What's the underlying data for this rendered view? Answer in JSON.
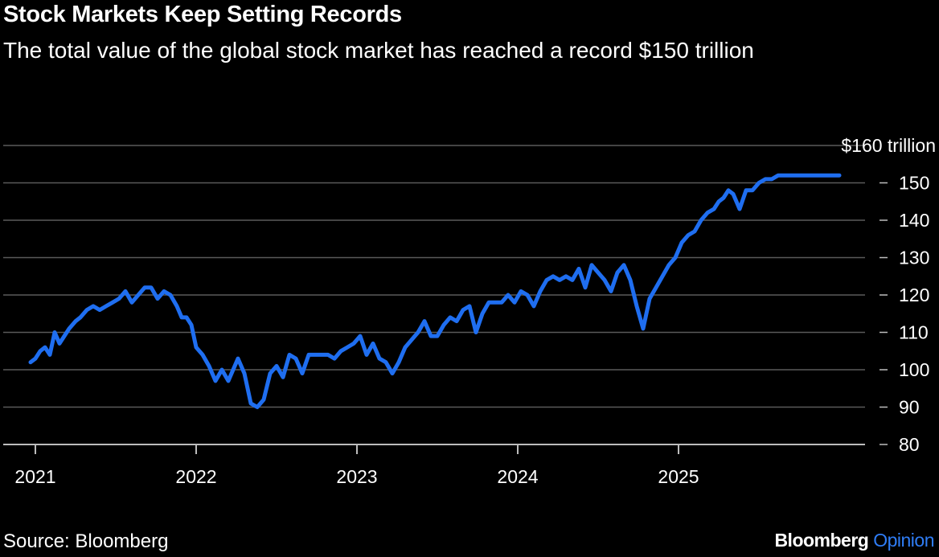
{
  "title": "Stock Markets Keep Setting Records",
  "subtitle": "The total value of the global stock market has reached a record $150 trillion",
  "source": "Source: Bloomberg",
  "brand": {
    "name": "Bloomberg",
    "suffix": "Opinion",
    "accent_color": "#2f7df6"
  },
  "chart_data": {
    "type": "line",
    "title": "Stock Markets Keep Setting Records",
    "ylim": [
      80,
      160
    ],
    "yticks": [
      80,
      90,
      100,
      110,
      120,
      130,
      140,
      150,
      160
    ],
    "ytick_labels": [
      "80",
      "90",
      "100",
      "110",
      "120",
      "130",
      "140",
      "150",
      "$160 trillion"
    ],
    "xticks": [
      "2021",
      "2022",
      "2023",
      "2024",
      "2025"
    ],
    "xlim": [
      2021.0,
      2026.25
    ],
    "grid": true,
    "line_color": "#1f6ef0",
    "series": [
      {
        "x": [
          2020.97,
          2021.0,
          2021.03,
          2021.06,
          2021.09,
          2021.12,
          2021.15,
          2021.18,
          2021.21,
          2021.25,
          2021.28,
          2021.32,
          2021.36,
          2021.4,
          2021.44,
          2021.48,
          2021.52,
          2021.56,
          2021.6,
          2021.64,
          2021.68,
          2021.72,
          2021.76,
          2021.8,
          2021.84,
          2021.88,
          2021.91,
          2021.94,
          2021.97,
          2022.0,
          2022.04,
          2022.08,
          2022.12,
          2022.16,
          2022.2,
          2022.23,
          2022.26,
          2022.3,
          2022.34,
          2022.38,
          2022.42,
          2022.46,
          2022.5,
          2022.54,
          2022.58,
          2022.62,
          2022.66,
          2022.7,
          2022.74,
          2022.78,
          2022.82,
          2022.86,
          2022.9,
          2022.94,
          2022.98,
          2023.02,
          2023.06,
          2023.1,
          2023.14,
          2023.18,
          2023.22,
          2023.26,
          2023.3,
          2023.34,
          2023.38,
          2023.42,
          2023.46,
          2023.5,
          2023.54,
          2023.58,
          2023.62,
          2023.66,
          2023.7,
          2023.74,
          2023.78,
          2023.82,
          2023.86,
          2023.9,
          2023.94,
          2023.98,
          2024.02,
          2024.06,
          2024.1,
          2024.14,
          2024.18,
          2024.22,
          2024.26,
          2024.3,
          2024.34,
          2024.38,
          2024.42,
          2024.46,
          2024.5,
          2024.54,
          2024.58,
          2024.62,
          2024.66,
          2024.7,
          2024.74,
          2024.78,
          2024.82,
          2024.86,
          2024.9,
          2024.94,
          2024.98,
          2025.02,
          2025.06,
          2025.1,
          2025.14,
          2025.18,
          2025.22,
          2025.25,
          2025.28,
          2025.31,
          2025.34,
          2025.38,
          2025.42,
          2025.46,
          2025.5,
          2025.54,
          2025.58,
          2025.62,
          2025.66,
          2025.7,
          2025.74,
          2025.78,
          2025.82,
          2025.86,
          2025.9,
          2025.94,
          2025.97,
          2026.0
        ],
        "values": [
          102,
          103,
          105,
          106,
          104,
          110,
          107,
          109,
          111,
          113,
          114,
          116,
          117,
          116,
          117,
          118,
          119,
          121,
          118,
          120,
          122,
          122,
          119,
          121,
          120,
          117,
          114,
          114,
          112,
          106,
          104,
          101,
          97,
          100,
          97,
          100,
          103,
          99,
          91,
          90,
          92,
          99,
          101,
          98,
          104,
          103,
          99,
          104,
          104,
          104,
          104,
          103,
          105,
          106,
          107,
          109,
          104,
          107,
          103,
          102,
          99,
          102,
          106,
          108,
          110,
          113,
          109,
          109,
          112,
          114,
          113,
          116,
          117,
          110,
          115,
          118,
          118,
          118,
          120,
          118,
          121,
          120,
          117,
          121,
          124,
          125,
          124,
          125,
          124,
          127,
          122,
          128,
          126,
          124,
          121,
          126,
          128,
          124,
          117,
          111,
          119,
          122,
          125,
          128,
          130,
          134,
          136,
          137,
          140,
          142,
          143,
          145,
          146,
          148,
          147,
          143,
          148,
          148,
          150,
          151,
          151,
          152,
          152,
          152,
          152,
          152,
          152,
          152,
          152,
          152,
          152,
          152
        ],
        "note": "values clipped to 152 max; visible endpoint ~151.5"
      }
    ]
  }
}
